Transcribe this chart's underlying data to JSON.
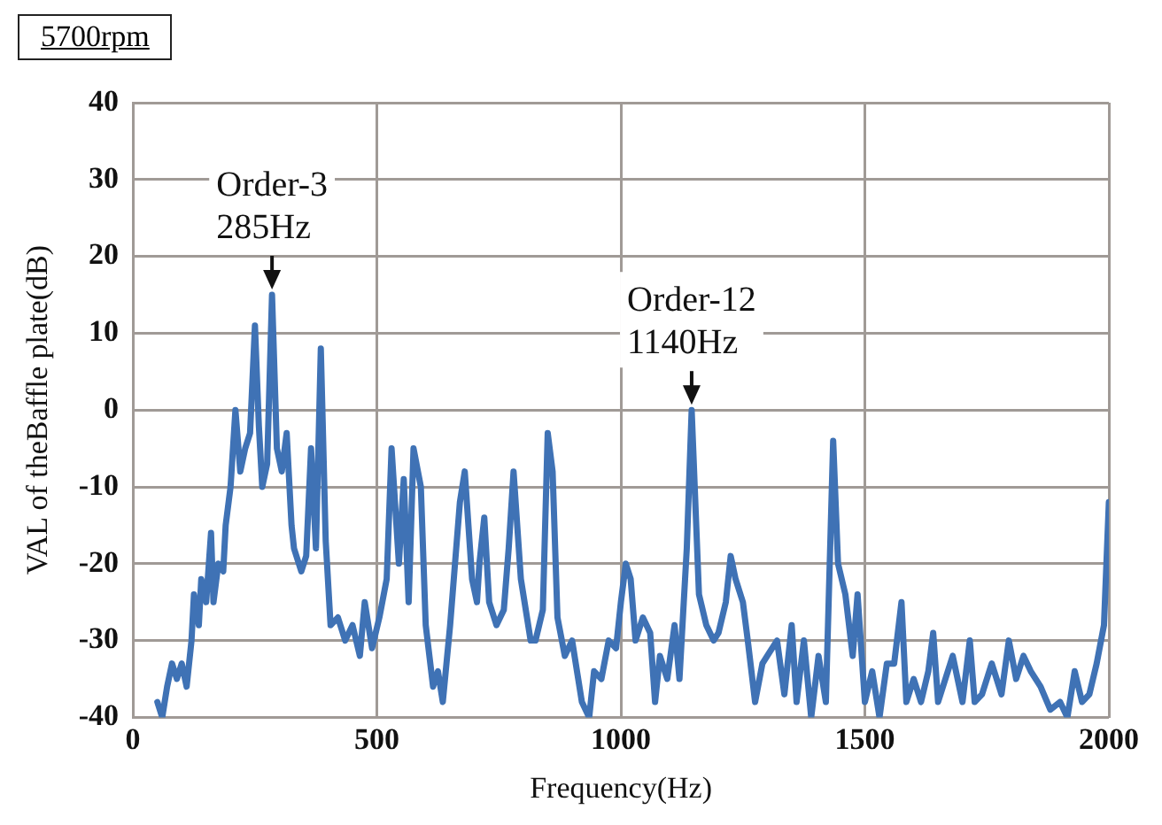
{
  "chart_data": {
    "type": "line",
    "title": "5700rpm",
    "xlabel": "Frequency(Hz)",
    "ylabel": "VAL of theBaffle plate(dB)",
    "x": [
      50,
      60,
      70,
      80,
      90,
      100,
      110,
      120,
      125,
      135,
      140,
      150,
      160,
      165,
      175,
      185,
      190,
      200,
      210,
      220,
      230,
      240,
      250,
      258,
      265,
      275,
      285,
      295,
      305,
      315,
      325,
      330,
      345,
      355,
      365,
      375,
      385,
      395,
      405,
      420,
      435,
      450,
      465,
      475,
      490,
      505,
      520,
      530,
      545,
      555,
      565,
      575,
      590,
      600,
      615,
      625,
      635,
      650,
      660,
      670,
      680,
      695,
      705,
      710,
      720,
      730,
      745,
      760,
      770,
      780,
      795,
      815,
      825,
      840,
      850,
      860,
      870,
      885,
      900,
      920,
      935,
      945,
      960,
      975,
      990,
      1000,
      1010,
      1020,
      1030,
      1045,
      1060,
      1070,
      1080,
      1095,
      1110,
      1120,
      1135,
      1145,
      1160,
      1175,
      1190,
      1200,
      1215,
      1225,
      1235,
      1250,
      1260,
      1275,
      1290,
      1300,
      1320,
      1335,
      1350,
      1360,
      1375,
      1390,
      1405,
      1420,
      1435,
      1445,
      1460,
      1475,
      1485,
      1500,
      1515,
      1530,
      1545,
      1560,
      1575,
      1585,
      1600,
      1615,
      1630,
      1640,
      1650,
      1665,
      1680,
      1700,
      1715,
      1725,
      1740,
      1760,
      1780,
      1795,
      1810,
      1825,
      1840,
      1860,
      1880,
      1900,
      1915,
      1930,
      1945,
      1960,
      1975,
      1990,
      2000
    ],
    "series": [
      {
        "color": "#3f72b5",
        "values": [
          -38,
          -40,
          -36,
          -33,
          -35,
          -33,
          -36,
          -30,
          -24,
          -28,
          -22,
          -25,
          -16,
          -25,
          -20,
          -21,
          -15,
          -10,
          0,
          -8,
          -5,
          -3,
          11,
          -2,
          -10,
          -7,
          15,
          -5,
          -8,
          -3,
          -15,
          -18,
          -21,
          -19,
          -5,
          -18,
          8,
          -17,
          -28,
          -27,
          -30,
          -28,
          -32,
          -25,
          -31,
          -27,
          -22,
          -5,
          -20,
          -9,
          -25,
          -5,
          -10,
          -28,
          -36,
          -34,
          -38,
          -28,
          -20,
          -12,
          -8,
          -22,
          -25,
          -20,
          -14,
          -25,
          -28,
          -26,
          -18,
          -8,
          -22,
          -30,
          -30,
          -26,
          -3,
          -8,
          -27,
          -32,
          -30,
          -38,
          -40,
          -34,
          -35,
          -30,
          -31,
          -25,
          -20,
          -22,
          -30,
          -27,
          -29,
          -38,
          -32,
          -35,
          -28,
          -35,
          -18,
          0,
          -24,
          -28,
          -30,
          -29,
          -25,
          -19,
          -22,
          -25,
          -30,
          -38,
          -33,
          -32,
          -30,
          -37,
          -28,
          -38,
          -30,
          -40,
          -32,
          -38,
          -4,
          -20,
          -24,
          -32,
          -24,
          -38,
          -34,
          -40,
          -33,
          -33,
          -25,
          -38,
          -35,
          -38,
          -34,
          -29,
          -38,
          -35,
          -32,
          -38,
          -30,
          -38,
          -37,
          -33,
          -37,
          -30,
          -35,
          -32,
          -34,
          -36,
          -39,
          -38,
          -40,
          -34,
          -38,
          -37,
          -33,
          -28,
          -12
        ]
      }
    ],
    "xlim": [
      0,
      2000
    ],
    "xticks": [
      0,
      500,
      1000,
      1500,
      2000
    ],
    "ylim": [
      -40,
      40
    ],
    "yticks": [
      -40,
      -30,
      -20,
      -10,
      0,
      10,
      20,
      30,
      40
    ],
    "grid": true,
    "marker": "none",
    "line_style": "solid",
    "legend": false,
    "annotations": [
      {
        "text": "Order-3\n285Hz",
        "x": 285,
        "y": 15
      },
      {
        "text": "Order-12\n1140Hz",
        "x": 1145,
        "y": 0
      }
    ]
  }
}
